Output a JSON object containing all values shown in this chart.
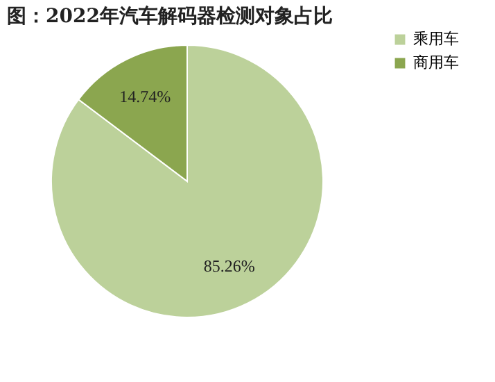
{
  "chart_data": {
    "type": "pie",
    "title": "图：2022年汽车解码器检测对象占比",
    "categories": [
      "乘用车",
      "商用车"
    ],
    "values": [
      85.26,
      14.74
    ],
    "colors": [
      "#bcd19a",
      "#8ba64f"
    ],
    "value_labels": [
      "85.26%",
      "14.74%"
    ],
    "legend": "right"
  }
}
